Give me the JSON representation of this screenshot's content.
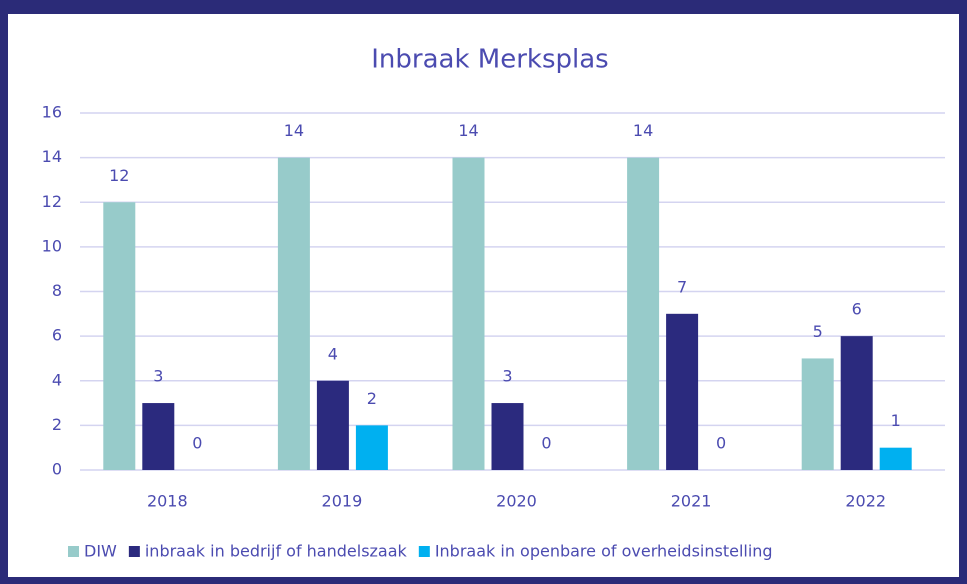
{
  "chart_data": {
    "type": "bar",
    "title": "Inbraak Merksplas",
    "categories": [
      "2018",
      "2019",
      "2020",
      "2021",
      "2022"
    ],
    "series": [
      {
        "name": "DIW",
        "color": "#97cbca",
        "values": [
          12,
          14,
          14,
          14,
          5
        ]
      },
      {
        "name": "inbraak in bedrijf of handelszaak",
        "color": "#2b2a7e",
        "values": [
          3,
          4,
          3,
          7,
          6
        ]
      },
      {
        "name": "Inbraak in openbare of overheidsinstelling",
        "color": "#00b0f0",
        "values": [
          0,
          2,
          0,
          0,
          1
        ]
      }
    ],
    "ylim": [
      0,
      16
    ],
    "yticks": [
      0,
      2,
      4,
      6,
      8,
      10,
      12,
      14,
      16
    ],
    "grid": true,
    "legend": "bottom"
  }
}
